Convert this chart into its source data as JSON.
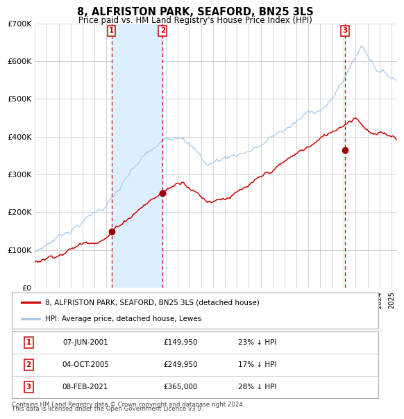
{
  "title": "8, ALFRISTON PARK, SEAFORD, BN25 3LS",
  "subtitle": "Price paid vs. HM Land Registry's House Price Index (HPI)",
  "hpi_color": "#a8c8e8",
  "price_color": "#cc0000",
  "shading_color": "#ddeeff",
  "vline_color": "#cc0000",
  "background_color": "#ffffff",
  "grid_color": "#cccccc",
  "ylim": [
    0,
    700000
  ],
  "yticks": [
    0,
    100000,
    200000,
    300000,
    400000,
    500000,
    600000,
    700000
  ],
  "ytick_labels": [
    "£0",
    "£100K",
    "£200K",
    "£300K",
    "£400K",
    "£500K",
    "£600K",
    "£700K"
  ],
  "xlim_start": 1995.0,
  "xlim_end": 2025.5,
  "transactions": [
    {
      "label": "1",
      "date_num": 2001.44,
      "price": 149950,
      "pct": "23%",
      "date_str": "07-JUN-2001",
      "price_str": "£149,950"
    },
    {
      "label": "2",
      "date_num": 2005.75,
      "price": 249950,
      "pct": "17%",
      "date_str": "04-OCT-2005",
      "price_str": "£249,950"
    },
    {
      "label": "3",
      "date_num": 2021.1,
      "price": 365000,
      "pct": "28%",
      "date_str": "08-FEB-2021",
      "price_str": "£365,000"
    }
  ],
  "legend_line1": "8, ALFRISTON PARK, SEAFORD, BN25 3LS (detached house)",
  "legend_line2": "HPI: Average price, detached house, Lewes",
  "footnote1": "Contains HM Land Registry data © Crown copyright and database right 2024.",
  "footnote2": "This data is licensed under the Open Government Licence v3.0."
}
